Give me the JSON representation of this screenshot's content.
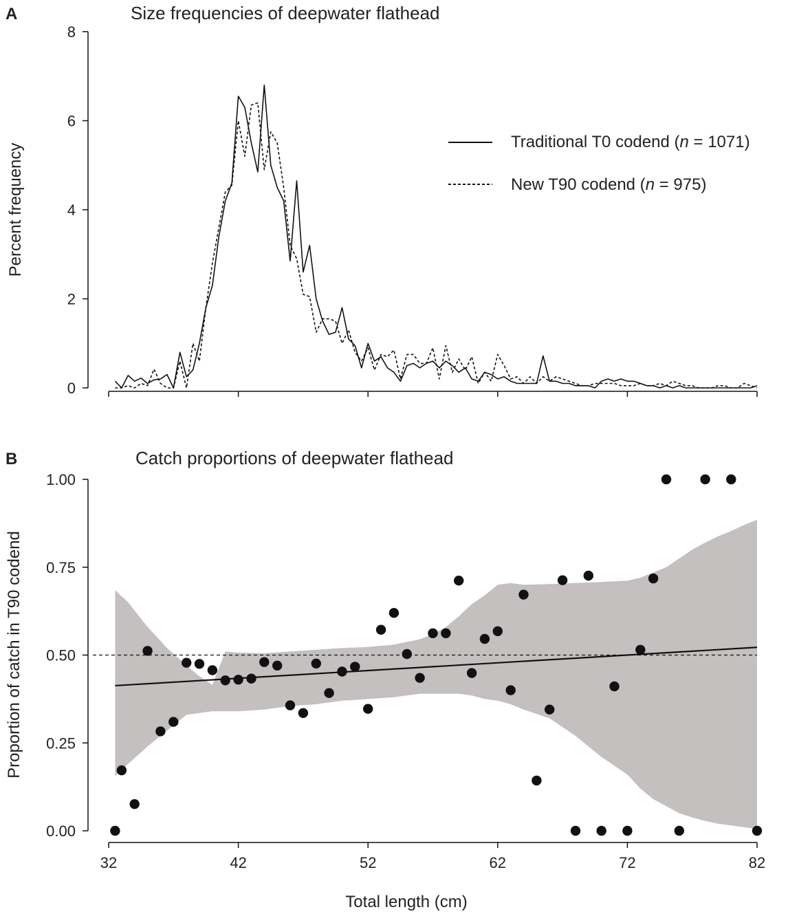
{
  "colors": {
    "ink": "#111111",
    "band": "#c4c0c0",
    "dots": "#111111"
  },
  "chart_data": [
    {
      "panel": "A",
      "type": "line",
      "title": "Size frequencies of deepwater flathead",
      "xlabel": "",
      "ylabel": "Percent frequency",
      "xlim": [
        32,
        82
      ],
      "ylim": [
        0,
        8
      ],
      "yticks": [
        "0",
        "2",
        "4",
        "6",
        "8"
      ],
      "legend_position": "top-right",
      "x": [
        32.5,
        33,
        33.5,
        34,
        34.5,
        35,
        35.5,
        36,
        36.5,
        37,
        37.5,
        38,
        38.5,
        39,
        39.5,
        40,
        40.5,
        41,
        41.5,
        42,
        42.5,
        43,
        43.5,
        44,
        44.5,
        45,
        45.5,
        46,
        46.5,
        47,
        47.5,
        48,
        48.5,
        49,
        49.5,
        50,
        50.5,
        51,
        51.5,
        52,
        52.5,
        53,
        53.5,
        54,
        54.5,
        55,
        55.5,
        56,
        56.5,
        57,
        57.5,
        58,
        58.5,
        59,
        59.5,
        60,
        60.5,
        61,
        61.5,
        62,
        62.5,
        63,
        63.5,
        64,
        64.5,
        65,
        65.5,
        66,
        66.5,
        67,
        67.5,
        68,
        68.5,
        69,
        69.5,
        70,
        70.5,
        71,
        71.5,
        72,
        72.5,
        73,
        73.5,
        74,
        74.5,
        75,
        75.5,
        76,
        76.5,
        77,
        77.5,
        78,
        78.5,
        79,
        79.5,
        80,
        80.5,
        81,
        81.5,
        82
      ],
      "series": [
        {
          "name": "Traditional T0 codend",
          "n_label": "1071",
          "style": "solid",
          "values": [
            0.15,
            0,
            0.28,
            0.15,
            0.22,
            0.1,
            0.18,
            0.2,
            0.3,
            0,
            0.8,
            0.25,
            0.4,
            1.0,
            1.8,
            2.3,
            3.4,
            4.2,
            4.6,
            6.55,
            6.3,
            5.5,
            4.85,
            6.8,
            5.0,
            4.5,
            4.2,
            2.85,
            4.65,
            2.6,
            3.2,
            2.0,
            1.5,
            1.2,
            1.25,
            1.8,
            1.1,
            0.95,
            0.45,
            1.0,
            0.6,
            0.7,
            0.45,
            0.35,
            0.15,
            0.5,
            0.55,
            0.45,
            0.55,
            0.6,
            0.45,
            0.6,
            0.5,
            0.35,
            0.45,
            0.2,
            0.15,
            0.35,
            0.3,
            0.2,
            0.25,
            0.15,
            0.1,
            0.1,
            0.1,
            0.1,
            0.72,
            0.15,
            0.15,
            0.1,
            0.1,
            0.05,
            0.05,
            0.05,
            0,
            0.15,
            0.2,
            0.15,
            0.2,
            0.15,
            0.15,
            0.1,
            0.05,
            0.05,
            0,
            0.05,
            0,
            0.05,
            0,
            0,
            0,
            0,
            0,
            0,
            0,
            0,
            0,
            0,
            0,
            0.05
          ]
        },
        {
          "name": "New T90 codend",
          "n_label": "975",
          "style": "dashed",
          "values": [
            0,
            0,
            0.05,
            0,
            0.1,
            0.05,
            0.42,
            0.1,
            0,
            0,
            0.6,
            0,
            1.0,
            0.6,
            1.8,
            2.8,
            3.6,
            4.4,
            4.55,
            6.0,
            5.2,
            6.35,
            6.4,
            4.9,
            5.75,
            5.5,
            4.5,
            3.2,
            2.9,
            2.1,
            2.05,
            1.25,
            1.55,
            1.55,
            1.5,
            1.0,
            1.3,
            0.8,
            0.6,
            0.9,
            0.4,
            0.75,
            0.7,
            0.85,
            0.2,
            0.75,
            0.75,
            0.55,
            0.55,
            0.9,
            0.2,
            0.95,
            0.35,
            0.65,
            0.4,
            0.7,
            0.1,
            0.35,
            0.15,
            0.75,
            0.5,
            0.2,
            0.25,
            0.1,
            0.25,
            0.1,
            0.25,
            0.15,
            0.25,
            0.2,
            0.15,
            0.1,
            0.05,
            0.05,
            0.1,
            0.1,
            0.1,
            0.1,
            0.05,
            0.05,
            0.05,
            0.1,
            0.05,
            0.05,
            0.1,
            0.05,
            0.15,
            0.1,
            0.05,
            0.05,
            0,
            0,
            0,
            0.05,
            0.05,
            0,
            0,
            0.1,
            0.05,
            0
          ]
        }
      ]
    },
    {
      "panel": "B",
      "type": "scatter",
      "title": "Catch proportions of deepwater flathead",
      "xlabel": "Total length (cm)",
      "ylabel": "Proportion of catch in T90 codend",
      "xlim": [
        32,
        82
      ],
      "ylim": [
        0,
        1
      ],
      "xticks": [
        "32",
        "42",
        "52",
        "62",
        "72",
        "82"
      ],
      "yticks": [
        "0.00",
        "0.25",
        "0.50",
        "0.75",
        "1.00"
      ],
      "reference_line": 0.5,
      "fit_line": {
        "x": [
          32.5,
          82
        ],
        "y": [
          0.413,
          0.522
        ]
      },
      "confidence_band": {
        "x": [
          32.5,
          33.5,
          35,
          36.5,
          38,
          39,
          40,
          41,
          42,
          44,
          46,
          48,
          50,
          52,
          54,
          56,
          57,
          58,
          59,
          60,
          61,
          62,
          63,
          64,
          66,
          68,
          70,
          72,
          73,
          74,
          75,
          76,
          77,
          78,
          79,
          80,
          81,
          82
        ],
        "upper": [
          0.685,
          0.65,
          0.58,
          0.52,
          0.47,
          0.44,
          0.415,
          0.51,
          0.507,
          0.505,
          0.51,
          0.515,
          0.52,
          0.523,
          0.53,
          0.545,
          0.56,
          0.58,
          0.61,
          0.645,
          0.67,
          0.7,
          0.705,
          0.7,
          0.702,
          0.705,
          0.708,
          0.712,
          0.72,
          0.735,
          0.75,
          0.775,
          0.8,
          0.82,
          0.838,
          0.853,
          0.87,
          0.885
        ],
        "lower": [
          0.155,
          0.19,
          0.24,
          0.285,
          0.33,
          0.335,
          0.34,
          0.34,
          0.34,
          0.345,
          0.355,
          0.36,
          0.37,
          0.375,
          0.38,
          0.39,
          0.39,
          0.39,
          0.39,
          0.385,
          0.375,
          0.37,
          0.36,
          0.345,
          0.32,
          0.27,
          0.21,
          0.16,
          0.12,
          0.09,
          0.07,
          0.05,
          0.038,
          0.028,
          0.02,
          0.015,
          0.01,
          0.005
        ]
      },
      "points": {
        "x": [
          32.5,
          33,
          34,
          35,
          36,
          37,
          38,
          39,
          40,
          41,
          42,
          43,
          44,
          45,
          46,
          47,
          48,
          49,
          50,
          51,
          52,
          53,
          54,
          55,
          56,
          57,
          58,
          59,
          60,
          61,
          62,
          63,
          64,
          65,
          66,
          67,
          68,
          69,
          70,
          71,
          72,
          73,
          74,
          75,
          76,
          77,
          78,
          79,
          80,
          81,
          82
        ],
        "y": [
          0,
          0.172,
          0.076,
          0.512,
          0.283,
          0.31,
          0.478,
          0.475,
          0.457,
          0.428,
          0.43,
          0.433,
          0.48,
          0.47,
          0.357,
          0.335,
          0.476,
          0.392,
          0.453,
          0.467,
          0.347,
          0.572,
          0.62,
          0.503,
          0.435,
          0.562,
          0.562,
          0.712,
          0.449,
          0.546,
          0.568,
          0.4,
          0.672,
          0.143,
          0.345,
          0.713,
          0,
          0.726,
          0,
          0.411,
          0,
          0.515,
          0.718,
          1.0,
          0,
          null,
          1.0,
          null,
          1.0,
          null,
          0
        ]
      }
    }
  ]
}
